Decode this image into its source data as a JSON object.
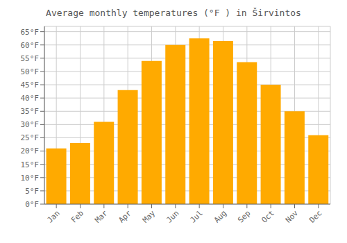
{
  "chart_data": {
    "type": "bar",
    "title": "Average monthly temperatures (°F ) in Širvintos",
    "categories": [
      "Jan",
      "Feb",
      "Mar",
      "Apr",
      "May",
      "Jun",
      "Jul",
      "Aug",
      "Sep",
      "Oct",
      "Nov",
      "Dec"
    ],
    "values": [
      21,
      23,
      31,
      43,
      54,
      60,
      62.5,
      61.5,
      53.5,
      45,
      35,
      26
    ],
    "color": "#FFAA00",
    "ylim": [
      0,
      67
    ],
    "yticks": [
      {
        "value": 0,
        "label": "0°F"
      },
      {
        "value": 5,
        "label": "5°F"
      },
      {
        "value": 10,
        "label": "10°F"
      },
      {
        "value": 15,
        "label": "15°F"
      },
      {
        "value": 20,
        "label": "20°F"
      },
      {
        "value": 25,
        "label": "25°F"
      },
      {
        "value": 30,
        "label": "30°F"
      },
      {
        "value": 35,
        "label": "35°F"
      },
      {
        "value": 40,
        "label": "40°F"
      },
      {
        "value": 45,
        "label": "45°F"
      },
      {
        "value": 50,
        "label": "50°F"
      },
      {
        "value": 55,
        "label": "55°F"
      },
      {
        "value": 60,
        "label": "60°F"
      },
      {
        "value": 65,
        "label": "65°F"
      }
    ],
    "grid": true
  }
}
